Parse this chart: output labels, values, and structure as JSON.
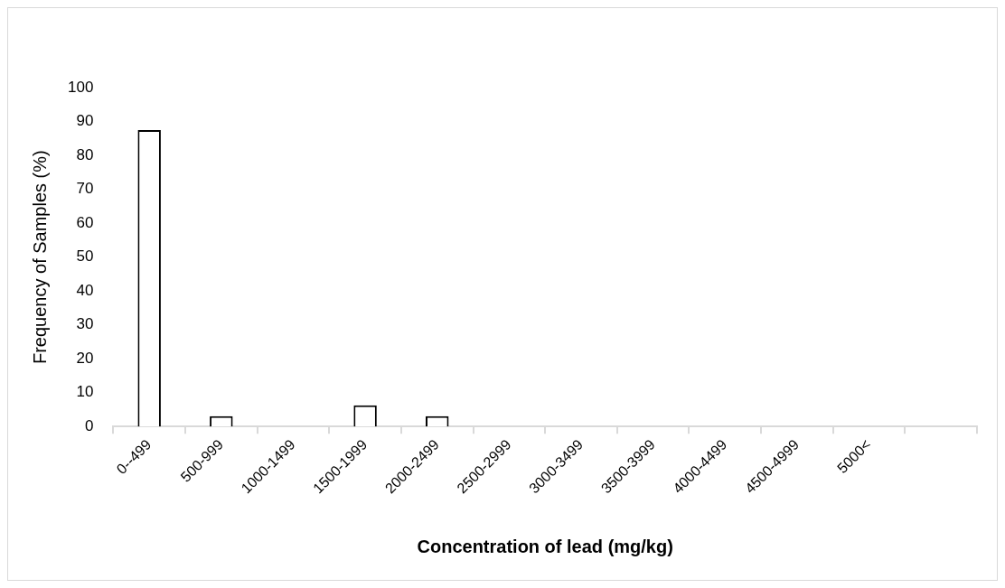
{
  "chart_data": {
    "type": "bar",
    "xlabel": "Concentration of lead (mg/kg)",
    "ylabel": "Frequency of Samples (%)",
    "categories": [
      "0--499",
      "500-999",
      "1000-1499",
      "1500-1999",
      "2000-2499",
      "2500-2999",
      "3000-3499",
      "3500-3999",
      "4000-4499",
      "4500-4999",
      "5000<",
      null
    ],
    "values": [
      87.5,
      3.1,
      0,
      6.25,
      3.1,
      0,
      0,
      0,
      0,
      0,
      0,
      0
    ],
    "color": "#ffffff",
    "ylim": [
      0,
      100
    ],
    "yticks": [
      0,
      10,
      20,
      30,
      40,
      50,
      60,
      70,
      80,
      90,
      100
    ],
    "grid": false,
    "legend": false
  }
}
